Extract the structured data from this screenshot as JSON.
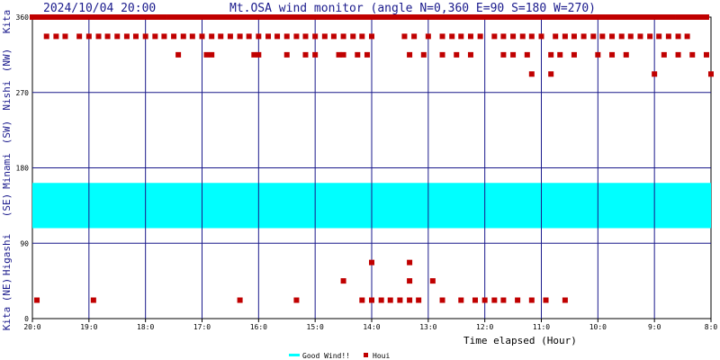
{
  "header": {
    "timestamp": "2024/10/04 20:00",
    "title": "Mt.OSA wind monitor (angle N=0,360 E=90 S=180 W=270)"
  },
  "chart_data": {
    "type": "scatter",
    "title": "Mt.OSA wind monitor (angle N=0,360 E=90 S=180 W=270)",
    "xlabel": "Time elapsed (Hour)",
    "ylabel": "",
    "x_ticks": [
      "20:0",
      "19:0",
      "18:0",
      "17:0",
      "16:0",
      "15:0",
      "14:0",
      "13:0",
      "12:0",
      "11:0",
      "10:0",
      "9:0",
      "8:0"
    ],
    "y_ticks": [
      "0",
      "90",
      "180",
      "270",
      "360"
    ],
    "ylim": [
      0,
      360
    ],
    "xlim_hours_elapsed": [
      0,
      12
    ],
    "y_side_labels": [
      "Kita",
      "(NE)",
      "Higashi",
      "(SE)",
      "Minami",
      "(SW)",
      "Nishi",
      "(NW)",
      "Kita"
    ],
    "grid": true,
    "good_wind": {
      "name": "Good Wind!!",
      "from_deg": 108,
      "to_deg": 162,
      "color": "#00ffff"
    },
    "series": [
      {
        "name": "Houi",
        "color": "#c00000",
        "points": [
          [
            0.0,
            360
          ],
          [
            0.08,
            360
          ],
          [
            0.17,
            360
          ],
          [
            0.25,
            360
          ],
          [
            0.33,
            360
          ],
          [
            0.42,
            360
          ],
          [
            0.5,
            360
          ],
          [
            0.58,
            360
          ],
          [
            0.67,
            360
          ],
          [
            0.75,
            360
          ],
          [
            0.83,
            360
          ],
          [
            0.92,
            360
          ],
          [
            1.0,
            360
          ],
          [
            1.08,
            360
          ],
          [
            1.17,
            360
          ],
          [
            1.25,
            360
          ],
          [
            1.33,
            360
          ],
          [
            1.42,
            360
          ],
          [
            1.5,
            360
          ],
          [
            1.58,
            360
          ],
          [
            1.67,
            360
          ],
          [
            1.75,
            360
          ],
          [
            1.83,
            360
          ],
          [
            1.92,
            360
          ],
          [
            2.0,
            360
          ],
          [
            2.08,
            360
          ],
          [
            2.17,
            360
          ],
          [
            2.25,
            360
          ],
          [
            2.33,
            360
          ],
          [
            2.42,
            360
          ],
          [
            2.5,
            360
          ],
          [
            2.58,
            360
          ],
          [
            2.67,
            360
          ],
          [
            2.75,
            360
          ],
          [
            2.83,
            360
          ],
          [
            2.92,
            360
          ],
          [
            3.0,
            360
          ],
          [
            3.08,
            360
          ],
          [
            3.17,
            360
          ],
          [
            3.25,
            360
          ],
          [
            3.33,
            360
          ],
          [
            3.42,
            360
          ],
          [
            3.5,
            360
          ],
          [
            3.58,
            360
          ],
          [
            3.67,
            360
          ],
          [
            3.75,
            360
          ],
          [
            3.83,
            360
          ],
          [
            3.92,
            360
          ],
          [
            4.0,
            360
          ],
          [
            4.08,
            360
          ],
          [
            4.17,
            360
          ],
          [
            4.25,
            360
          ],
          [
            4.33,
            360
          ],
          [
            4.42,
            360
          ],
          [
            4.5,
            360
          ],
          [
            4.58,
            360
          ],
          [
            4.67,
            360
          ],
          [
            4.75,
            360
          ],
          [
            4.83,
            360
          ],
          [
            4.92,
            360
          ],
          [
            5.0,
            360
          ],
          [
            5.08,
            360
          ],
          [
            5.17,
            360
          ],
          [
            5.25,
            360
          ],
          [
            5.33,
            360
          ],
          [
            5.42,
            360
          ],
          [
            5.5,
            360
          ],
          [
            5.58,
            360
          ],
          [
            5.67,
            360
          ],
          [
            5.75,
            360
          ],
          [
            5.83,
            360
          ],
          [
            5.92,
            360
          ],
          [
            6.0,
            360
          ],
          [
            6.08,
            360
          ],
          [
            6.17,
            360
          ],
          [
            6.25,
            360
          ],
          [
            6.33,
            360
          ],
          [
            6.42,
            360
          ],
          [
            6.5,
            360
          ],
          [
            6.58,
            360
          ],
          [
            6.67,
            360
          ],
          [
            6.75,
            360
          ],
          [
            6.83,
            360
          ],
          [
            6.92,
            360
          ],
          [
            7.0,
            360
          ],
          [
            7.08,
            360
          ],
          [
            7.17,
            360
          ],
          [
            7.25,
            360
          ],
          [
            7.33,
            360
          ],
          [
            7.42,
            360
          ],
          [
            7.5,
            360
          ],
          [
            7.58,
            360
          ],
          [
            7.67,
            360
          ],
          [
            7.75,
            360
          ],
          [
            7.83,
            360
          ],
          [
            7.92,
            360
          ],
          [
            8.0,
            360
          ],
          [
            8.08,
            360
          ],
          [
            8.17,
            360
          ],
          [
            8.25,
            360
          ],
          [
            8.33,
            360
          ],
          [
            8.42,
            360
          ],
          [
            8.5,
            360
          ],
          [
            8.58,
            360
          ],
          [
            8.67,
            360
          ],
          [
            8.75,
            360
          ],
          [
            8.83,
            360
          ],
          [
            8.92,
            360
          ],
          [
            9.0,
            360
          ],
          [
            9.08,
            360
          ],
          [
            9.17,
            360
          ],
          [
            9.25,
            360
          ],
          [
            9.33,
            360
          ],
          [
            9.42,
            360
          ],
          [
            9.5,
            360
          ],
          [
            9.58,
            360
          ],
          [
            9.67,
            360
          ],
          [
            9.75,
            360
          ],
          [
            9.83,
            360
          ],
          [
            9.92,
            360
          ],
          [
            10.0,
            360
          ],
          [
            10.08,
            360
          ],
          [
            10.17,
            360
          ],
          [
            10.25,
            360
          ],
          [
            10.33,
            360
          ],
          [
            10.42,
            360
          ],
          [
            10.5,
            360
          ],
          [
            10.58,
            360
          ],
          [
            10.67,
            360
          ],
          [
            10.75,
            360
          ],
          [
            10.83,
            360
          ],
          [
            10.92,
            360
          ],
          [
            11.0,
            360
          ],
          [
            11.08,
            360
          ],
          [
            11.17,
            360
          ],
          [
            11.25,
            360
          ],
          [
            11.33,
            360
          ],
          [
            11.42,
            360
          ],
          [
            11.5,
            360
          ],
          [
            11.58,
            360
          ],
          [
            11.67,
            360
          ],
          [
            11.75,
            360
          ],
          [
            11.83,
            360
          ],
          [
            11.92,
            360
          ],
          [
            0.25,
            337
          ],
          [
            0.42,
            337
          ],
          [
            0.58,
            337
          ],
          [
            0.83,
            337
          ],
          [
            1.0,
            337
          ],
          [
            1.17,
            337
          ],
          [
            1.33,
            337
          ],
          [
            1.5,
            337
          ],
          [
            1.67,
            337
          ],
          [
            1.83,
            337
          ],
          [
            2.0,
            337
          ],
          [
            2.17,
            337
          ],
          [
            2.33,
            337
          ],
          [
            2.5,
            337
          ],
          [
            2.67,
            337
          ],
          [
            2.83,
            337
          ],
          [
            3.0,
            337
          ],
          [
            3.17,
            337
          ],
          [
            3.33,
            337
          ],
          [
            3.5,
            337
          ],
          [
            3.67,
            337
          ],
          [
            3.83,
            337
          ],
          [
            4.0,
            337
          ],
          [
            4.17,
            337
          ],
          [
            4.33,
            337
          ],
          [
            4.5,
            337
          ],
          [
            4.67,
            337
          ],
          [
            4.83,
            337
          ],
          [
            5.0,
            337
          ],
          [
            5.17,
            337
          ],
          [
            5.33,
            337
          ],
          [
            5.5,
            337
          ],
          [
            5.67,
            337
          ],
          [
            5.83,
            337
          ],
          [
            6.0,
            337
          ],
          [
            6.58,
            337
          ],
          [
            6.75,
            337
          ],
          [
            7.0,
            337
          ],
          [
            7.25,
            337
          ],
          [
            7.42,
            337
          ],
          [
            7.58,
            337
          ],
          [
            7.75,
            337
          ],
          [
            7.92,
            337
          ],
          [
            8.17,
            337
          ],
          [
            8.33,
            337
          ],
          [
            8.5,
            337
          ],
          [
            8.67,
            337
          ],
          [
            8.83,
            337
          ],
          [
            9.0,
            337
          ],
          [
            9.25,
            337
          ],
          [
            9.42,
            337
          ],
          [
            9.58,
            337
          ],
          [
            9.75,
            337
          ],
          [
            9.92,
            337
          ],
          [
            10.08,
            337
          ],
          [
            10.25,
            337
          ],
          [
            10.42,
            337
          ],
          [
            10.58,
            337
          ],
          [
            10.75,
            337
          ],
          [
            10.92,
            337
          ],
          [
            11.08,
            337
          ],
          [
            11.25,
            337
          ],
          [
            11.42,
            337
          ],
          [
            11.58,
            337
          ],
          [
            2.58,
            315
          ],
          [
            3.08,
            315
          ],
          [
            3.17,
            315
          ],
          [
            3.92,
            315
          ],
          [
            4.0,
            315
          ],
          [
            4.5,
            315
          ],
          [
            4.83,
            315
          ],
          [
            5.0,
            315
          ],
          [
            5.42,
            315
          ],
          [
            5.5,
            315
          ],
          [
            5.75,
            315
          ],
          [
            5.92,
            315
          ],
          [
            6.67,
            315
          ],
          [
            6.92,
            315
          ],
          [
            7.25,
            315
          ],
          [
            7.5,
            315
          ],
          [
            7.75,
            315
          ],
          [
            8.33,
            315
          ],
          [
            8.5,
            315
          ],
          [
            8.75,
            315
          ],
          [
            9.17,
            315
          ],
          [
            9.33,
            315
          ],
          [
            9.58,
            315
          ],
          [
            10.0,
            315
          ],
          [
            10.25,
            315
          ],
          [
            10.5,
            315
          ],
          [
            11.17,
            315
          ],
          [
            11.42,
            315
          ],
          [
            11.67,
            315
          ],
          [
            11.92,
            315
          ],
          [
            8.83,
            292
          ],
          [
            9.17,
            292
          ],
          [
            11.0,
            292
          ],
          [
            12.0,
            292
          ],
          [
            0.08,
            22
          ],
          [
            1.08,
            22
          ],
          [
            3.67,
            22
          ],
          [
            4.67,
            22
          ],
          [
            5.83,
            22
          ],
          [
            6.0,
            22
          ],
          [
            6.17,
            22
          ],
          [
            6.33,
            22
          ],
          [
            6.5,
            22
          ],
          [
            6.67,
            22
          ],
          [
            6.83,
            22
          ],
          [
            7.25,
            22
          ],
          [
            7.58,
            22
          ],
          [
            7.83,
            22
          ],
          [
            8.0,
            22
          ],
          [
            8.17,
            22
          ],
          [
            8.33,
            22
          ],
          [
            8.58,
            22
          ],
          [
            8.83,
            22
          ],
          [
            9.08,
            22
          ],
          [
            9.42,
            22
          ],
          [
            5.5,
            45
          ],
          [
            6.67,
            45
          ],
          [
            7.08,
            45
          ],
          [
            6.0,
            67
          ],
          [
            6.67,
            67
          ]
        ]
      }
    ],
    "legend": [
      {
        "label": "Good Wind!!",
        "color": "#00ffff"
      },
      {
        "label": "Houi",
        "color": "#c00000"
      }
    ],
    "legend_position": "bottom-center"
  }
}
